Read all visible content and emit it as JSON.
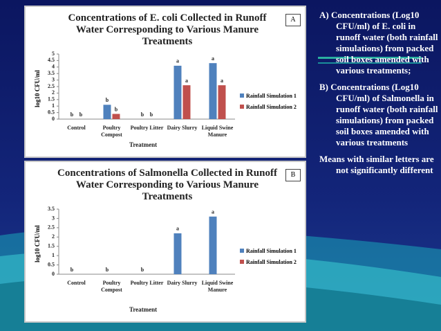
{
  "chart_data": [
    {
      "type": "bar",
      "title": "Concentrations of E. coli Collected in Runoff Water Corresponding to Various Manure Treatments",
      "panel_label": "A",
      "y_label": "log10 CFU/ml",
      "x_label": "Treatment",
      "categories": [
        "Control",
        "Poultry Compost",
        "Poultry Litter",
        "Dairy Slurry",
        "Liquid Swine Manure"
      ],
      "series": [
        {
          "name": "Rainfall Simulation 1",
          "color": "#4f81bd",
          "values": [
            0,
            1.1,
            0,
            4.1,
            4.3
          ],
          "letters": [
            "b",
            "b",
            "b",
            "a",
            "a"
          ]
        },
        {
          "name": "Rainfall Simulation 2",
          "color": "#c0504d",
          "values": [
            0,
            0.4,
            0,
            2.6,
            2.6
          ],
          "letters": [
            "b",
            "b",
            "b",
            "a",
            "a"
          ]
        }
      ],
      "ylim": [
        0,
        5
      ],
      "yticks": [
        0,
        0.5,
        1,
        1.5,
        2,
        2.5,
        3,
        3.5,
        4,
        4.5,
        5
      ]
    },
    {
      "type": "bar",
      "title": "Concentrations of Salmonella Collected in Runoff Water Corresponding to Various Manure Treatments",
      "panel_label": "B",
      "y_label": "log10 CFU/ml",
      "x_label": "Treatment",
      "categories": [
        "Control",
        "Poultry Compost",
        "Poultry Litter",
        "Dairy Slurry",
        "Liquid Swine Manure"
      ],
      "series": [
        {
          "name": "Rainfall Simulation 1",
          "color": "#4f81bd",
          "values": [
            0,
            0,
            0,
            2.2,
            3.1
          ],
          "letters": [
            "b",
            "b",
            "b",
            "a",
            "a"
          ]
        },
        {
          "name": "Rainfall Simulation 2",
          "color": "#c0504d",
          "values": [
            0,
            0,
            0,
            0,
            0
          ],
          "letters": [
            null,
            null,
            null,
            null,
            null
          ]
        }
      ],
      "ylim": [
        0,
        3.5
      ],
      "yticks": [
        0,
        0.5,
        1,
        1.5,
        2,
        2.5,
        3,
        3.5
      ]
    }
  ],
  "captions": [
    "A) Concentrations (Log10 CFU/ml) of E. coli in runoff water (both rainfall simulations) from packed soil boxes amended with various treatments;",
    "B) Concentrations (Log10 CFU/ml) of Salmonella in runoff water (both rainfall simulations) from packed soil boxes amended with various treatments",
    "Means with similar letters are not significantly different"
  ]
}
